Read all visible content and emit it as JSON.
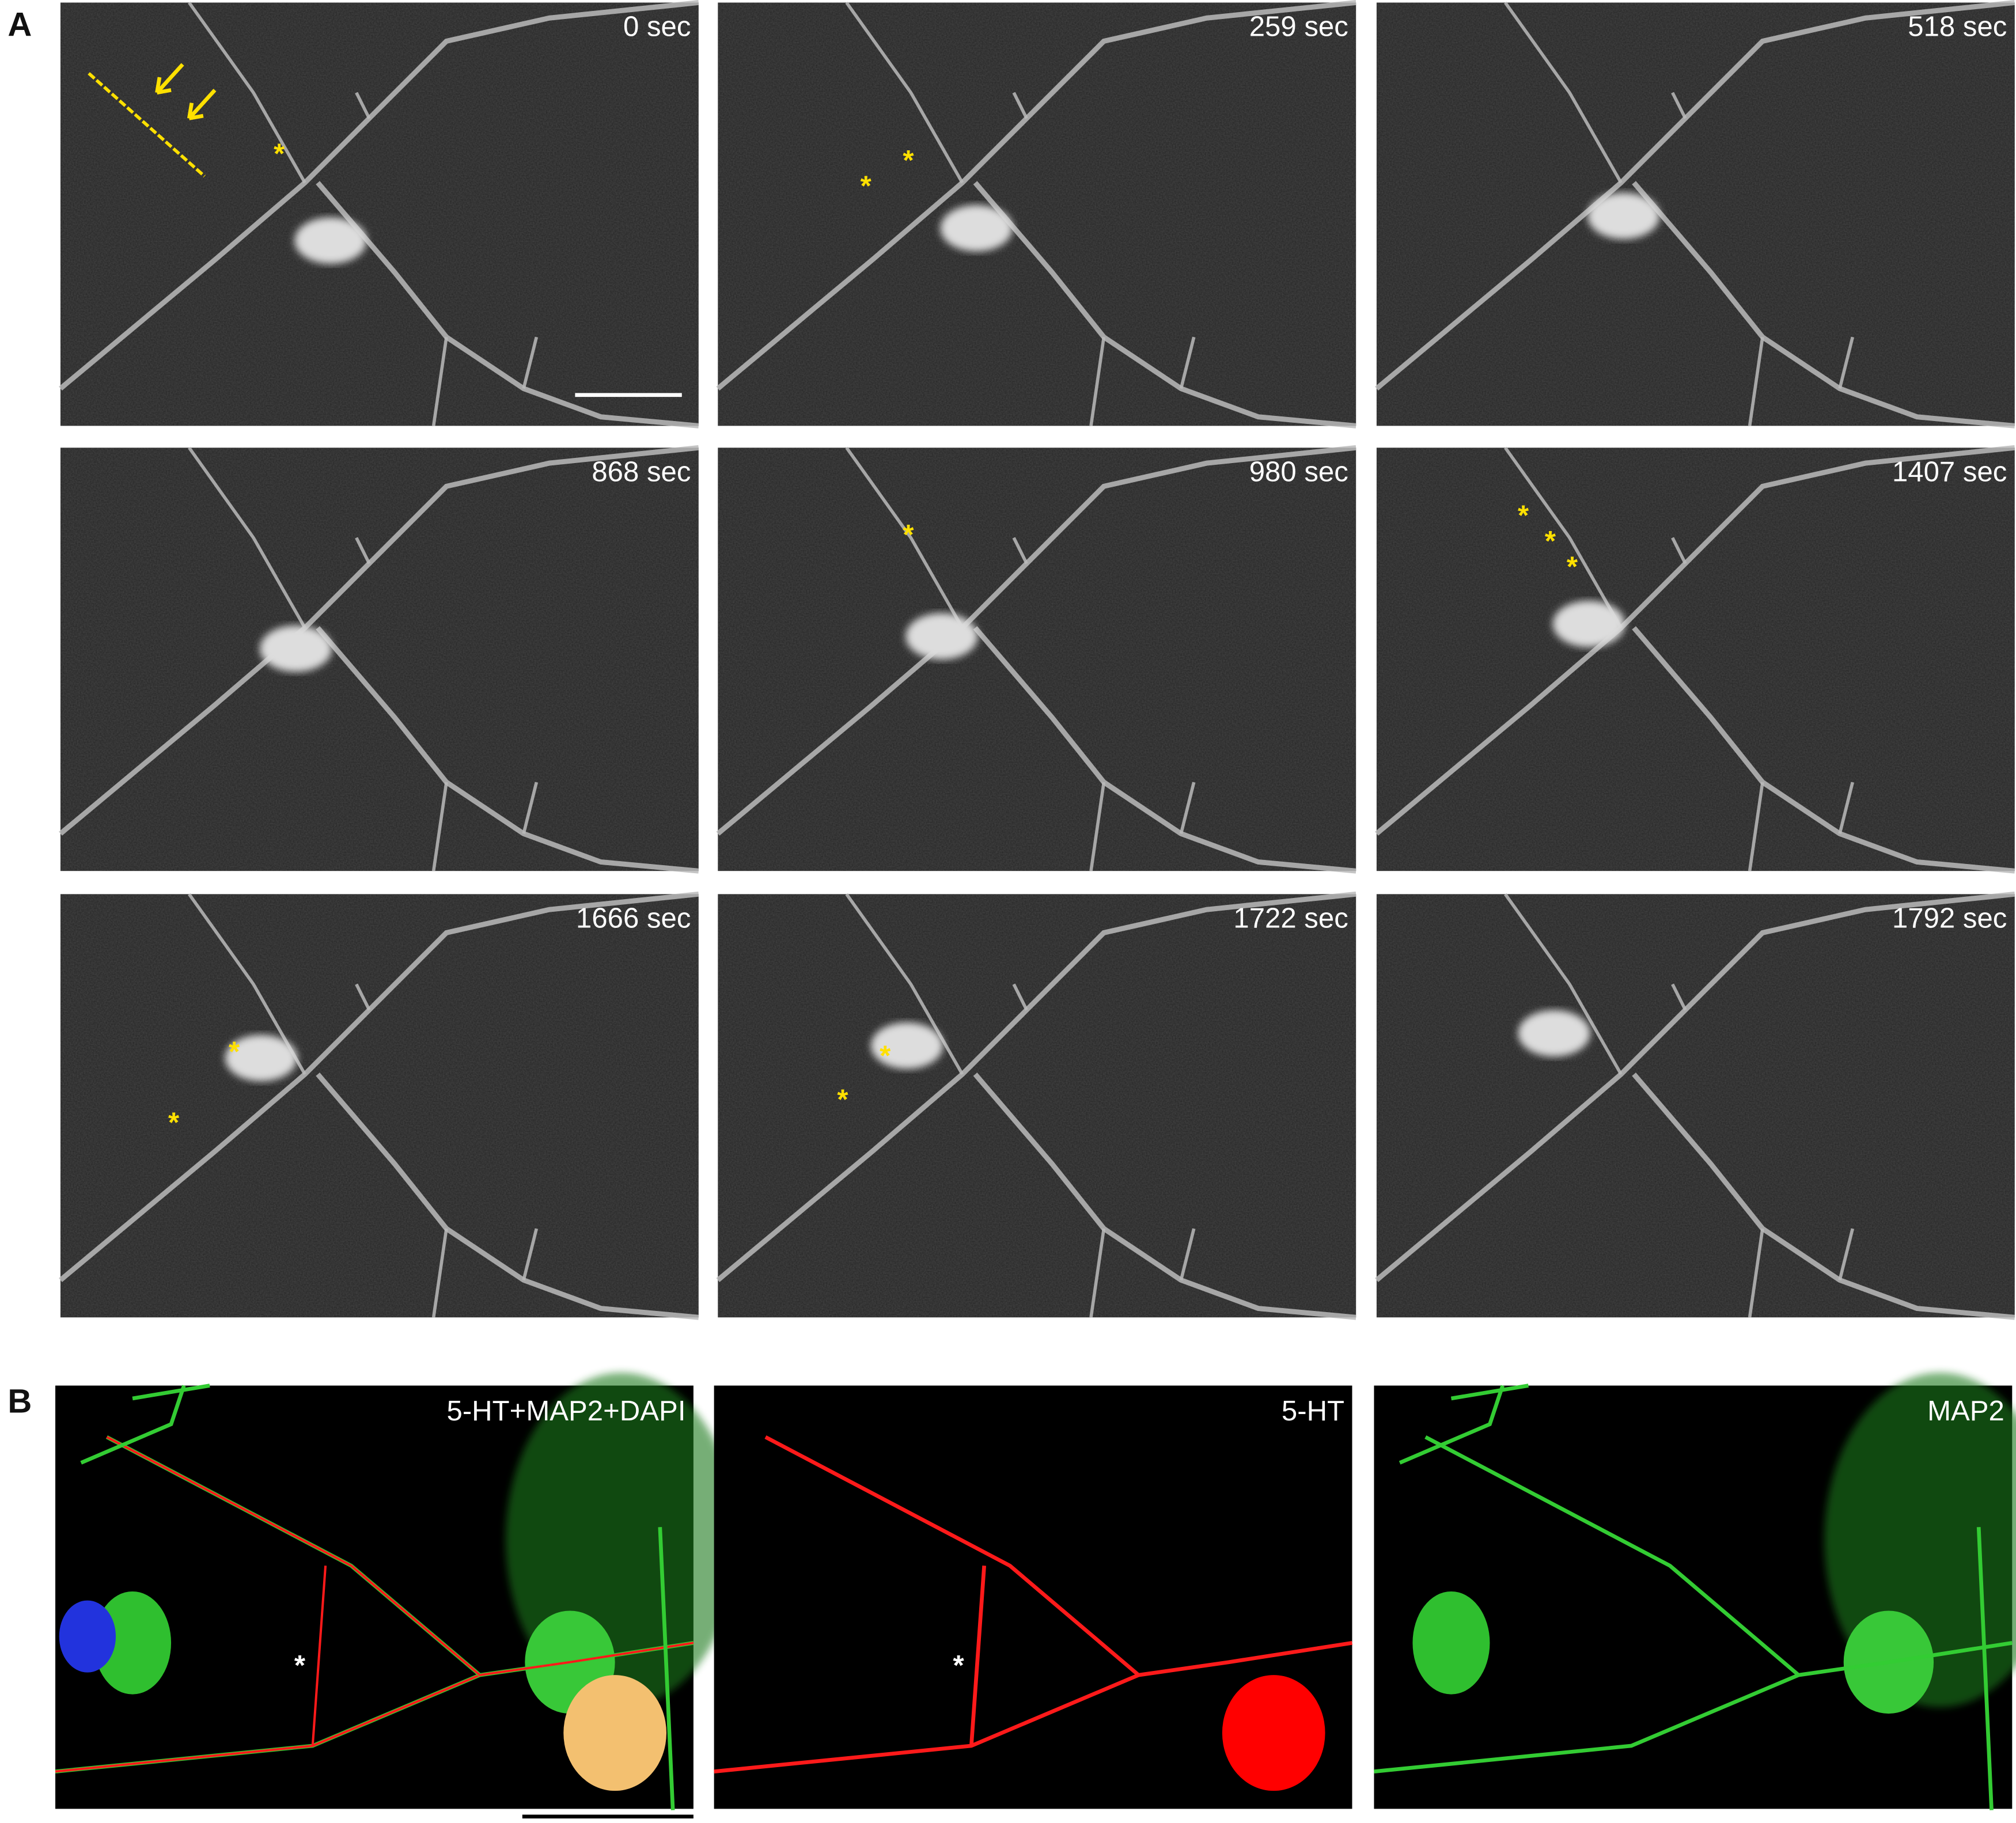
{
  "panel_a": {
    "label": "A",
    "frames": [
      "0 sec",
      "259 sec",
      "518 sec",
      "868 sec",
      "980 sec",
      "1407 sec",
      "1666 sec",
      "1722 sec",
      "1792 sec"
    ]
  },
  "panel_b": {
    "label": "B",
    "images": [
      "5-HT+MAP2+DAPI",
      "5-HT",
      "MAP2"
    ]
  },
  "asterisk": "*"
}
